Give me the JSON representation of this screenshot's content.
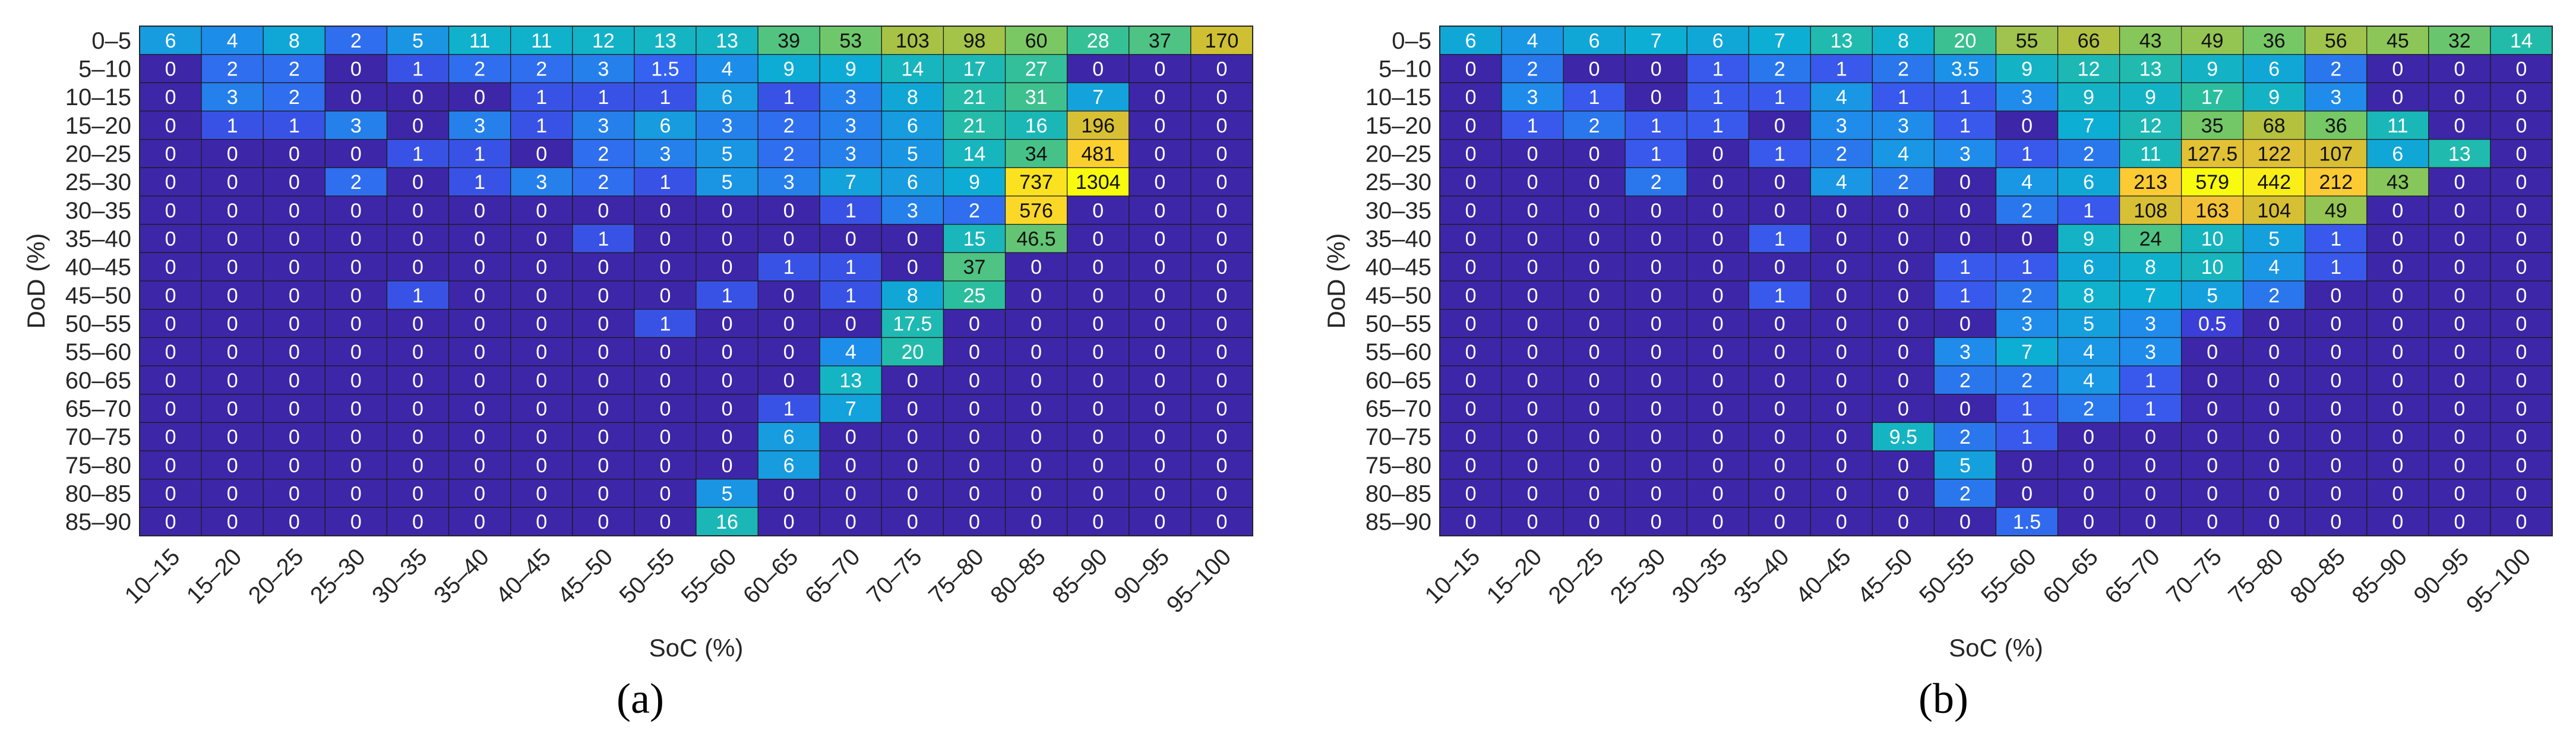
{
  "chart_data": [
    {
      "type": "heatmap",
      "panel_label": "(a)",
      "xlabel": "SoC (%)",
      "ylabel": "DoD (%)",
      "x_categories": [
        "10–15",
        "15–20",
        "20–25",
        "25–30",
        "30–35",
        "35–40",
        "40–45",
        "45–50",
        "50–55",
        "55–60",
        "60–65",
        "65–70",
        "70–75",
        "75–80",
        "80–85",
        "85–90",
        "90–95",
        "95–100"
      ],
      "y_categories": [
        "0–5",
        "5–10",
        "10–15",
        "15–20",
        "20–25",
        "25–30",
        "30–35",
        "35–40",
        "40–45",
        "45–50",
        "50–55",
        "55–60",
        "60–65",
        "65–70",
        "70–75",
        "75–80",
        "80–85",
        "85–90"
      ],
      "values": [
        [
          6,
          4,
          8,
          2,
          5,
          11,
          11,
          12,
          13,
          13,
          39,
          53,
          103,
          98,
          60,
          28,
          37,
          170
        ],
        [
          0,
          2,
          2,
          0,
          1,
          2,
          2,
          3,
          1.5,
          4,
          9,
          9,
          14,
          17,
          27,
          0,
          0,
          0
        ],
        [
          0,
          3,
          2,
          0,
          0,
          0,
          1,
          1,
          1,
          6,
          1,
          3,
          8,
          21,
          31,
          7,
          0,
          0
        ],
        [
          0,
          1,
          1,
          3,
          0,
          3,
          1,
          3,
          6,
          3,
          2,
          3,
          6,
          21,
          16,
          196,
          0,
          0
        ],
        [
          0,
          0,
          0,
          0,
          1,
          1,
          0,
          2,
          3,
          5,
          2,
          3,
          5,
          14,
          34,
          481,
          0,
          0
        ],
        [
          0,
          0,
          0,
          2,
          0,
          1,
          3,
          2,
          1,
          5,
          3,
          7,
          6,
          9,
          737,
          1304,
          0,
          0
        ],
        [
          0,
          0,
          0,
          0,
          0,
          0,
          0,
          0,
          0,
          0,
          0,
          1,
          3,
          2,
          576,
          0,
          0,
          0
        ],
        [
          0,
          0,
          0,
          0,
          0,
          0,
          0,
          1,
          0,
          0,
          0,
          0,
          0,
          15,
          46.5,
          0,
          0,
          0
        ],
        [
          0,
          0,
          0,
          0,
          0,
          0,
          0,
          0,
          0,
          0,
          1,
          1,
          0,
          37,
          0,
          0,
          0,
          0
        ],
        [
          0,
          0,
          0,
          0,
          1,
          0,
          0,
          0,
          0,
          1,
          0,
          1,
          8,
          25,
          0,
          0,
          0,
          0
        ],
        [
          0,
          0,
          0,
          0,
          0,
          0,
          0,
          0,
          1,
          0,
          0,
          0,
          17.5,
          0,
          0,
          0,
          0,
          0
        ],
        [
          0,
          0,
          0,
          0,
          0,
          0,
          0,
          0,
          0,
          0,
          0,
          4,
          20,
          0,
          0,
          0,
          0,
          0
        ],
        [
          0,
          0,
          0,
          0,
          0,
          0,
          0,
          0,
          0,
          0,
          0,
          13,
          0,
          0,
          0,
          0,
          0,
          0
        ],
        [
          0,
          0,
          0,
          0,
          0,
          0,
          0,
          0,
          0,
          0,
          1,
          7,
          0,
          0,
          0,
          0,
          0,
          0
        ],
        [
          0,
          0,
          0,
          0,
          0,
          0,
          0,
          0,
          0,
          0,
          6,
          0,
          0,
          0,
          0,
          0,
          0,
          0
        ],
        [
          0,
          0,
          0,
          0,
          0,
          0,
          0,
          0,
          0,
          0,
          6,
          0,
          0,
          0,
          0,
          0,
          0,
          0
        ],
        [
          0,
          0,
          0,
          0,
          0,
          0,
          0,
          0,
          0,
          5,
          0,
          0,
          0,
          0,
          0,
          0,
          0,
          0
        ],
        [
          0,
          0,
          0,
          0,
          0,
          0,
          0,
          0,
          0,
          16,
          0,
          0,
          0,
          0,
          0,
          0,
          0,
          0
        ]
      ],
      "colormap": "parula",
      "grid": true
    },
    {
      "type": "heatmap",
      "panel_label": "(b)",
      "xlabel": "SoC (%)",
      "ylabel": "DoD (%)",
      "x_categories": [
        "10–15",
        "15–20",
        "20–25",
        "25–30",
        "30–35",
        "35–40",
        "40–45",
        "45–50",
        "50–55",
        "55–60",
        "60–65",
        "65–70",
        "70–75",
        "75–80",
        "80–85",
        "85–90",
        "90–95",
        "95–100"
      ],
      "y_categories": [
        "0–5",
        "5–10",
        "10–15",
        "15–20",
        "20–25",
        "25–30",
        "30–35",
        "35–40",
        "40–45",
        "45–50",
        "50–55",
        "55–60",
        "60–65",
        "65–70",
        "70–75",
        "75–80",
        "80–85",
        "85–90"
      ],
      "values": [
        [
          6,
          4,
          6,
          7,
          6,
          7,
          13,
          8,
          20,
          55,
          66,
          43,
          49,
          36,
          56,
          45,
          32,
          14
        ],
        [
          0,
          2,
          0,
          0,
          1,
          2,
          1,
          2,
          3.5,
          9,
          12,
          13,
          9,
          6,
          2,
          0,
          0,
          0
        ],
        [
          0,
          3,
          1,
          0,
          1,
          1,
          4,
          1,
          1,
          3,
          9,
          9,
          17,
          9,
          3,
          0,
          0,
          0
        ],
        [
          0,
          1,
          2,
          1,
          1,
          0,
          3,
          3,
          1,
          0,
          7,
          12,
          35,
          68,
          36,
          11,
          0,
          0
        ],
        [
          0,
          0,
          0,
          1,
          0,
          1,
          2,
          4,
          3,
          1,
          2,
          11,
          127.5,
          122,
          107,
          6,
          13,
          0
        ],
        [
          0,
          0,
          0,
          2,
          0,
          0,
          4,
          2,
          0,
          4,
          6,
          213,
          579,
          442,
          212,
          43,
          0,
          0
        ],
        [
          0,
          0,
          0,
          0,
          0,
          0,
          0,
          0,
          0,
          2,
          1,
          108,
          163,
          104,
          49,
          0,
          0,
          0
        ],
        [
          0,
          0,
          0,
          0,
          0,
          1,
          0,
          0,
          0,
          0,
          9,
          24,
          10,
          5,
          1,
          0,
          0,
          0
        ],
        [
          0,
          0,
          0,
          0,
          0,
          0,
          0,
          0,
          1,
          1,
          6,
          8,
          10,
          4,
          1,
          0,
          0,
          0
        ],
        [
          0,
          0,
          0,
          0,
          0,
          1,
          0,
          0,
          1,
          2,
          8,
          7,
          5,
          2,
          0,
          0,
          0,
          0
        ],
        [
          0,
          0,
          0,
          0,
          0,
          0,
          0,
          0,
          0,
          3,
          5,
          3,
          0.5,
          0,
          0,
          0,
          0,
          0
        ],
        [
          0,
          0,
          0,
          0,
          0,
          0,
          0,
          0,
          3,
          7,
          4,
          3,
          0,
          0,
          0,
          0,
          0,
          0
        ],
        [
          0,
          0,
          0,
          0,
          0,
          0,
          0,
          0,
          2,
          2,
          4,
          1,
          0,
          0,
          0,
          0,
          0,
          0
        ],
        [
          0,
          0,
          0,
          0,
          0,
          0,
          0,
          0,
          0,
          1,
          2,
          1,
          0,
          0,
          0,
          0,
          0,
          0
        ],
        [
          0,
          0,
          0,
          0,
          0,
          0,
          0,
          9.5,
          2,
          1,
          0,
          0,
          0,
          0,
          0,
          0,
          0,
          0
        ],
        [
          0,
          0,
          0,
          0,
          0,
          0,
          0,
          0,
          5,
          0,
          0,
          0,
          0,
          0,
          0,
          0,
          0,
          0
        ],
        [
          0,
          0,
          0,
          0,
          0,
          0,
          0,
          0,
          2,
          0,
          0,
          0,
          0,
          0,
          0,
          0,
          0,
          0
        ],
        [
          0,
          0,
          0,
          0,
          0,
          0,
          0,
          0,
          0,
          1.5,
          0,
          0,
          0,
          0,
          0,
          0,
          0,
          0
        ]
      ],
      "colormap": "parula",
      "grid": true
    }
  ]
}
